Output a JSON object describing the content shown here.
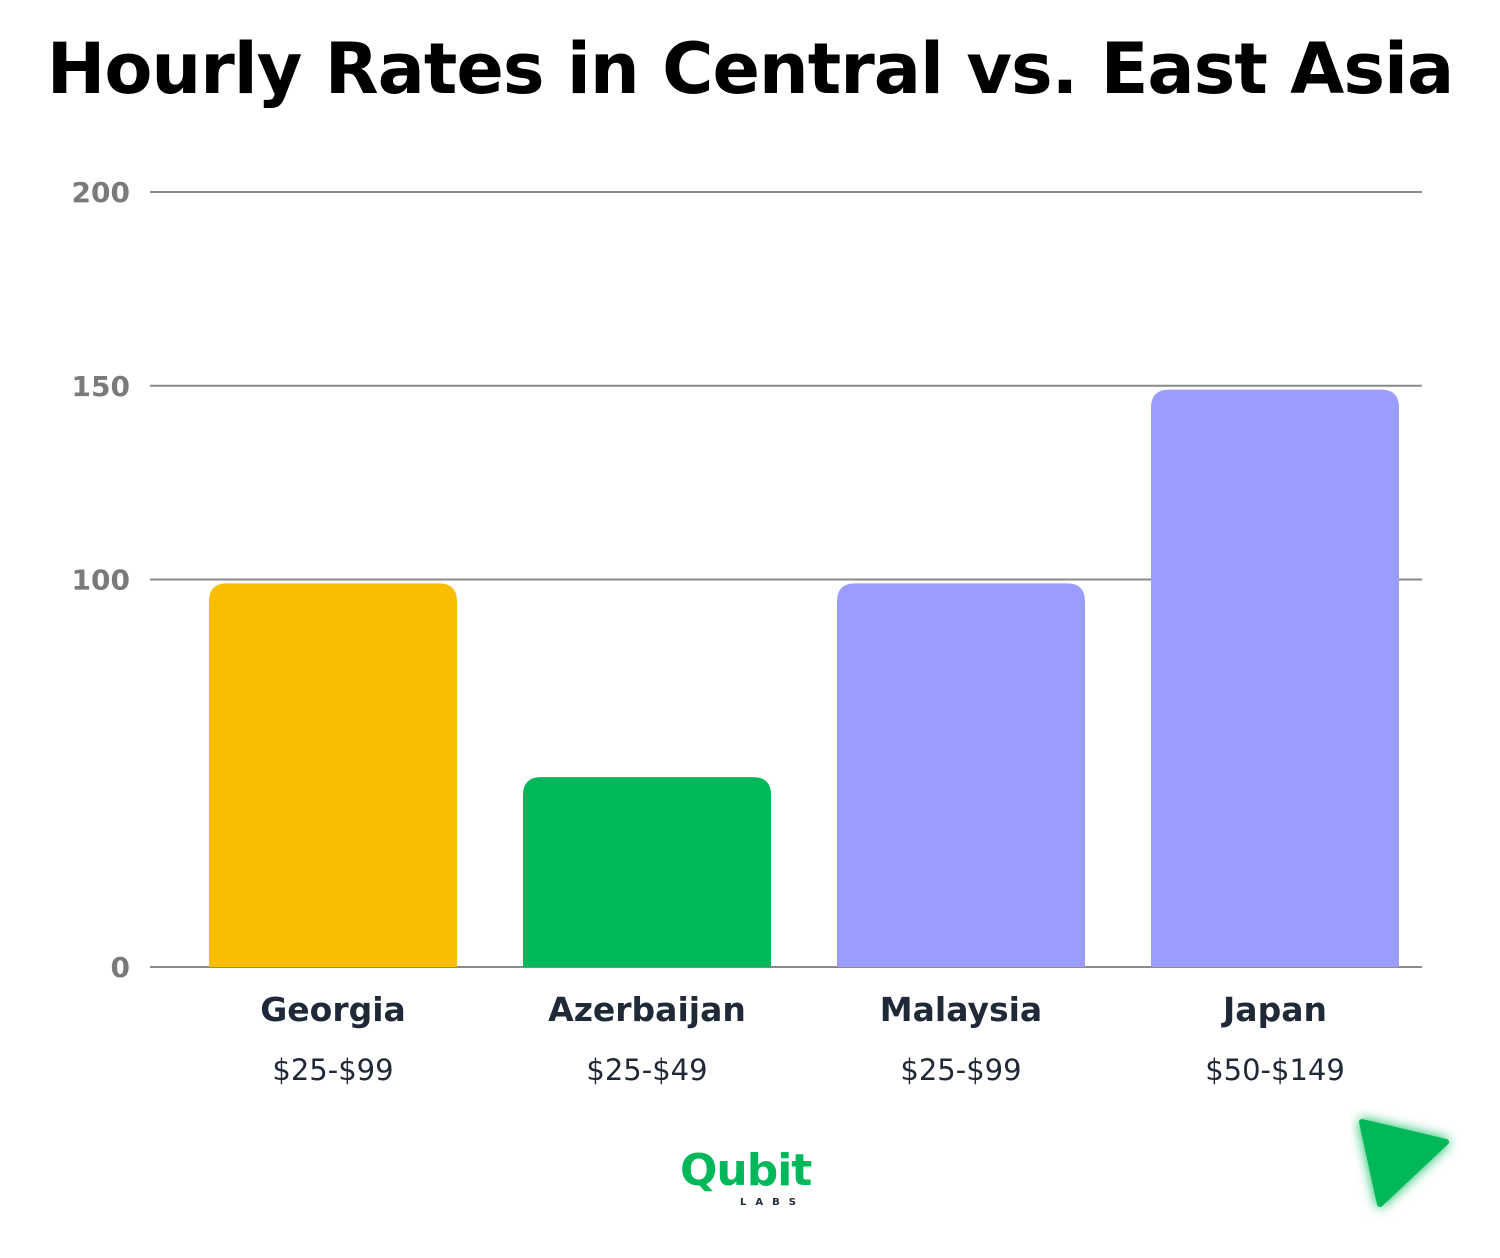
{
  "chart_data": {
    "type": "bar",
    "title": "Hourly Rates in Central vs. East Asia",
    "categories": [
      "Georgia",
      "Azerbaijan",
      "Malaysia",
      "Japan"
    ],
    "values": [
      99,
      49,
      99,
      149
    ],
    "range_labels": [
      "$25-$99",
      "$25-$49",
      "$25-$99",
      "$50-$149"
    ],
    "bar_colors": [
      "#f9be00",
      "#00b859",
      "#9a9dfd",
      "#9a9dfd"
    ],
    "ylim": [
      0,
      200
    ],
    "yticks": [
      0,
      100,
      150,
      200
    ],
    "grid": true,
    "legend": "none"
  },
  "logo": {
    "name": "Qubit",
    "subtitle": "LABS",
    "color": "#00b859",
    "accent": "#f9be00"
  },
  "icons": {
    "corner": "play-triangle-icon"
  }
}
